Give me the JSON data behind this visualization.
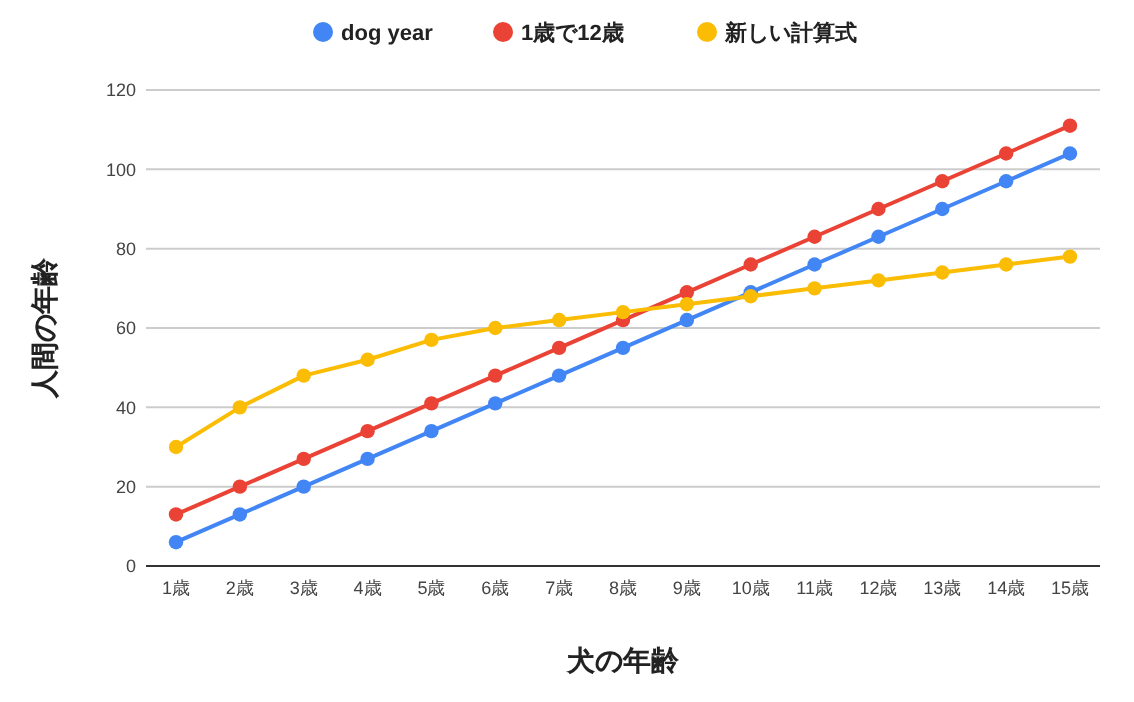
{
  "chart_data": {
    "type": "line",
    "xlabel": "犬の年齢",
    "ylabel": "人間の年齢",
    "categories": [
      "1歳",
      "2歳",
      "3歳",
      "4歳",
      "5歳",
      "6歳",
      "7歳",
      "8歳",
      "9歳",
      "10歳",
      "11歳",
      "12歳",
      "13歳",
      "14歳",
      "15歳"
    ],
    "series": [
      {
        "name": "dog year",
        "color": "#4285f4",
        "values": [
          6,
          13,
          20,
          27,
          34,
          41,
          48,
          55,
          62,
          69,
          76,
          83,
          90,
          97,
          104
        ]
      },
      {
        "name": "1歳で12歳",
        "color": "#ea4335",
        "values": [
          13,
          20,
          27,
          34,
          41,
          48,
          55,
          62,
          69,
          76,
          83,
          90,
          97,
          104,
          111
        ]
      },
      {
        "name": "新しい計算式",
        "color": "#fbbc04",
        "values": [
          30,
          40,
          48,
          52,
          57,
          60,
          62,
          64,
          66,
          68,
          70,
          72,
          74,
          76,
          78
        ]
      }
    ],
    "ylim": [
      0,
      120
    ],
    "yticks": [
      0,
      20,
      40,
      60,
      80,
      100,
      120
    ],
    "grid": "y",
    "legend": "top",
    "marker": "circle"
  }
}
